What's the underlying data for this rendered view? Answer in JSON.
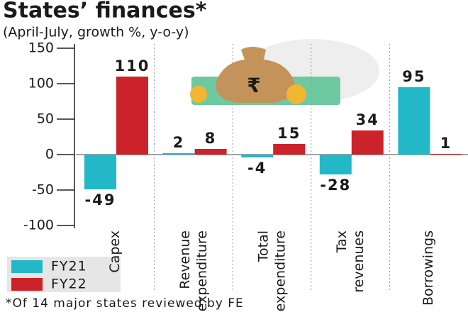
{
  "chart_data": {
    "type": "bar",
    "title": "States’ finances*",
    "subtitle": "(April-July, growth %, y-o-y)",
    "categories": [
      "Capex",
      "Revenue expenditure",
      "Total expenditure",
      "Tax revenues",
      "Borrowings"
    ],
    "series": [
      {
        "name": "FY21",
        "color": "#22b8c8",
        "values": [
          -49,
          2,
          -4,
          -28,
          95
        ]
      },
      {
        "name": "FY22",
        "color": "#cc2229",
        "values": [
          110,
          8,
          15,
          34,
          1
        ]
      }
    ],
    "ylim": [
      -100,
      150
    ],
    "yticks": [
      -100,
      -50,
      0,
      50,
      100,
      150
    ],
    "footnote": "*Of 14 major states reviewed by FE"
  }
}
